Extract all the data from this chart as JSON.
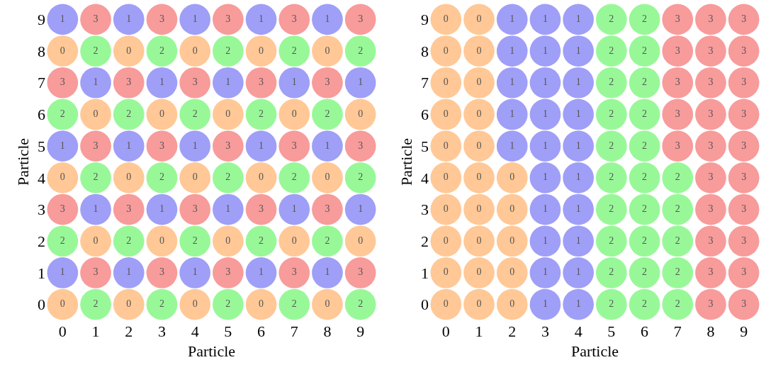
{
  "chart_data": [
    {
      "type": "heatmap",
      "xlabel": "Particle",
      "ylabel": "Particle",
      "categories": [
        "0",
        "1",
        "2",
        "3",
        "4",
        "5",
        "6",
        "7",
        "8",
        "9"
      ],
      "y_categories": [
        "9",
        "8",
        "7",
        "6",
        "5",
        "4",
        "3",
        "2",
        "1",
        "0"
      ],
      "colors": [
        "#ffc896",
        "#9f9ff8",
        "#98f898",
        "#f89b9b"
      ],
      "data_labels": true,
      "cells": [
        [
          1,
          3,
          1,
          3,
          1,
          3,
          1,
          3,
          1,
          3
        ],
        [
          0,
          2,
          0,
          2,
          0,
          2,
          0,
          2,
          0,
          2
        ],
        [
          3,
          1,
          3,
          1,
          3,
          1,
          3,
          1,
          3,
          1
        ],
        [
          2,
          0,
          2,
          0,
          2,
          0,
          2,
          0,
          2,
          0
        ],
        [
          1,
          3,
          1,
          3,
          1,
          3,
          1,
          3,
          1,
          3
        ],
        [
          0,
          2,
          0,
          2,
          0,
          2,
          0,
          2,
          0,
          2
        ],
        [
          3,
          1,
          3,
          1,
          3,
          1,
          3,
          1,
          3,
          1
        ],
        [
          2,
          0,
          2,
          0,
          2,
          0,
          2,
          0,
          2,
          0
        ],
        [
          1,
          3,
          1,
          3,
          1,
          3,
          1,
          3,
          1,
          3
        ],
        [
          0,
          2,
          0,
          2,
          0,
          2,
          0,
          2,
          0,
          2
        ]
      ]
    },
    {
      "type": "heatmap",
      "xlabel": "Particle",
      "ylabel": "Particle",
      "categories": [
        "0",
        "1",
        "2",
        "3",
        "4",
        "5",
        "6",
        "7",
        "8",
        "9"
      ],
      "y_categories": [
        "9",
        "8",
        "7",
        "6",
        "5",
        "4",
        "3",
        "2",
        "1",
        "0"
      ],
      "colors": [
        "#ffc896",
        "#9f9ff8",
        "#98f898",
        "#f89b9b"
      ],
      "data_labels": true,
      "cells": [
        [
          0,
          0,
          1,
          1,
          1,
          2,
          2,
          3,
          3,
          3
        ],
        [
          0,
          0,
          1,
          1,
          1,
          2,
          2,
          3,
          3,
          3
        ],
        [
          0,
          0,
          1,
          1,
          1,
          2,
          2,
          3,
          3,
          3
        ],
        [
          0,
          0,
          1,
          1,
          1,
          2,
          2,
          3,
          3,
          3
        ],
        [
          0,
          0,
          1,
          1,
          1,
          2,
          2,
          3,
          3,
          3
        ],
        [
          0,
          0,
          0,
          1,
          1,
          2,
          2,
          2,
          3,
          3
        ],
        [
          0,
          0,
          0,
          1,
          1,
          2,
          2,
          2,
          3,
          3
        ],
        [
          0,
          0,
          0,
          1,
          1,
          2,
          2,
          2,
          3,
          3
        ],
        [
          0,
          0,
          0,
          1,
          1,
          2,
          2,
          2,
          3,
          3
        ],
        [
          0,
          0,
          0,
          1,
          1,
          2,
          2,
          2,
          3,
          3
        ]
      ]
    }
  ]
}
